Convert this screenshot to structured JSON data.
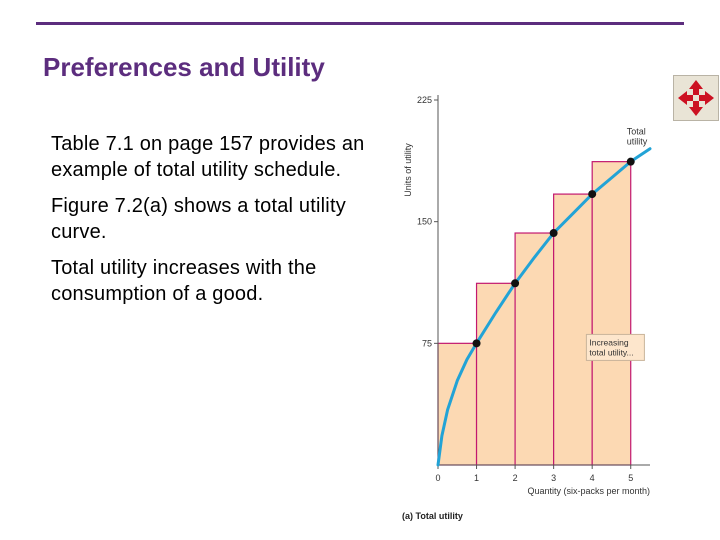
{
  "slide": {
    "title": "Preferences and Utility",
    "accent_color": "#5c2d7e",
    "bullets": [
      "Table 7.1 on page 157 provides an example of total utility schedule.",
      "Figure 7.2(a) shows a total utility curve.",
      "Total utility increases with the consumption of a good."
    ]
  },
  "nav_icon": {
    "name": "move-arrows-icon",
    "color": "#cc1122"
  },
  "chart_data": {
    "type": "line",
    "title": "(a) Total utility",
    "xlabel": "Quantity (six-packs per month)",
    "ylabel": "Units of utility",
    "xlim": [
      0,
      5.5
    ],
    "ylim": [
      0,
      225
    ],
    "x_ticks": [
      "0",
      "1",
      "2",
      "3",
      "4",
      "5"
    ],
    "y_ticks": [
      "75",
      "150",
      "225"
    ],
    "series": [
      {
        "name": "Total utility",
        "x": [
          0,
          0.1,
          0.25,
          0.5,
          0.75,
          1,
          1.5,
          2,
          2.5,
          3,
          3.5,
          4,
          4.5,
          5,
          5.5
        ],
        "values": [
          0,
          18,
          34,
          52,
          65,
          75,
          94,
          112,
          128,
          143,
          155,
          167,
          177,
          187,
          195
        ]
      }
    ],
    "points": [
      {
        "x": 1,
        "y": 75
      },
      {
        "x": 2,
        "y": 112
      },
      {
        "x": 3,
        "y": 143
      },
      {
        "x": 4,
        "y": 167
      },
      {
        "x": 5,
        "y": 187
      }
    ],
    "bars": [
      {
        "x": 1,
        "value": 75
      },
      {
        "x": 2,
        "value": 112
      },
      {
        "x": 3,
        "value": 143
      },
      {
        "x": 4,
        "value": 167
      },
      {
        "x": 5,
        "value": 187
      }
    ],
    "annotation": "Increasing total utility...",
    "colors": {
      "curve": "#22a3d6",
      "bar_fill": "#fcd9b3",
      "bar_stroke": "#c2186f",
      "point": "#111111",
      "axis": "#555555"
    },
    "grid": false
  }
}
